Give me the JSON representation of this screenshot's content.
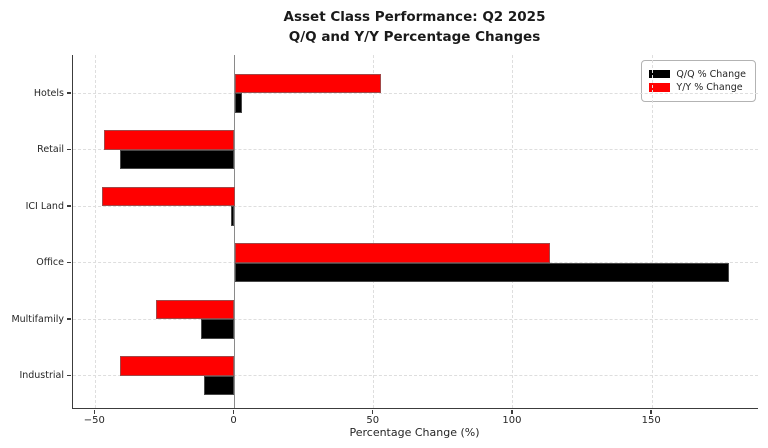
{
  "figure": {
    "title_line1": "Asset Class Performance: Q2 2025",
    "title_line2": "Q/Q and Y/Y Percentage Changes"
  },
  "chart_data": {
    "type": "bar",
    "orientation": "horizontal",
    "title": "Asset Class Performance: Q2 2025\nQ/Q and Y/Y Percentage Changes",
    "categories": [
      "Hotels",
      "Retail",
      "ICI Land",
      "Office",
      "Multifamily",
      "Industrial"
    ],
    "series": [
      {
        "name": "Q/Q % Change",
        "color": "#000000",
        "values": [
          2.6,
          -41.2,
          -1.2,
          177.5,
          -11.9,
          -10.9
        ]
      },
      {
        "name": "Y/Y % Change",
        "color": "#ff0000",
        "values": [
          52.6,
          -46.8,
          -47.5,
          113.3,
          -28.3,
          -41.2
        ]
      }
    ],
    "xlabel": "Percentage Change (%)",
    "ylabel": "",
    "xticks": [
      -50,
      0,
      50,
      100,
      150
    ],
    "xlim": [
      -58,
      188
    ],
    "grid": "dashed, both axes",
    "legend_position": "upper right",
    "zero_line_color": "#8a8a8a",
    "accent_colors": {
      "qq": "#000000",
      "yy": "#ff0000"
    }
  }
}
